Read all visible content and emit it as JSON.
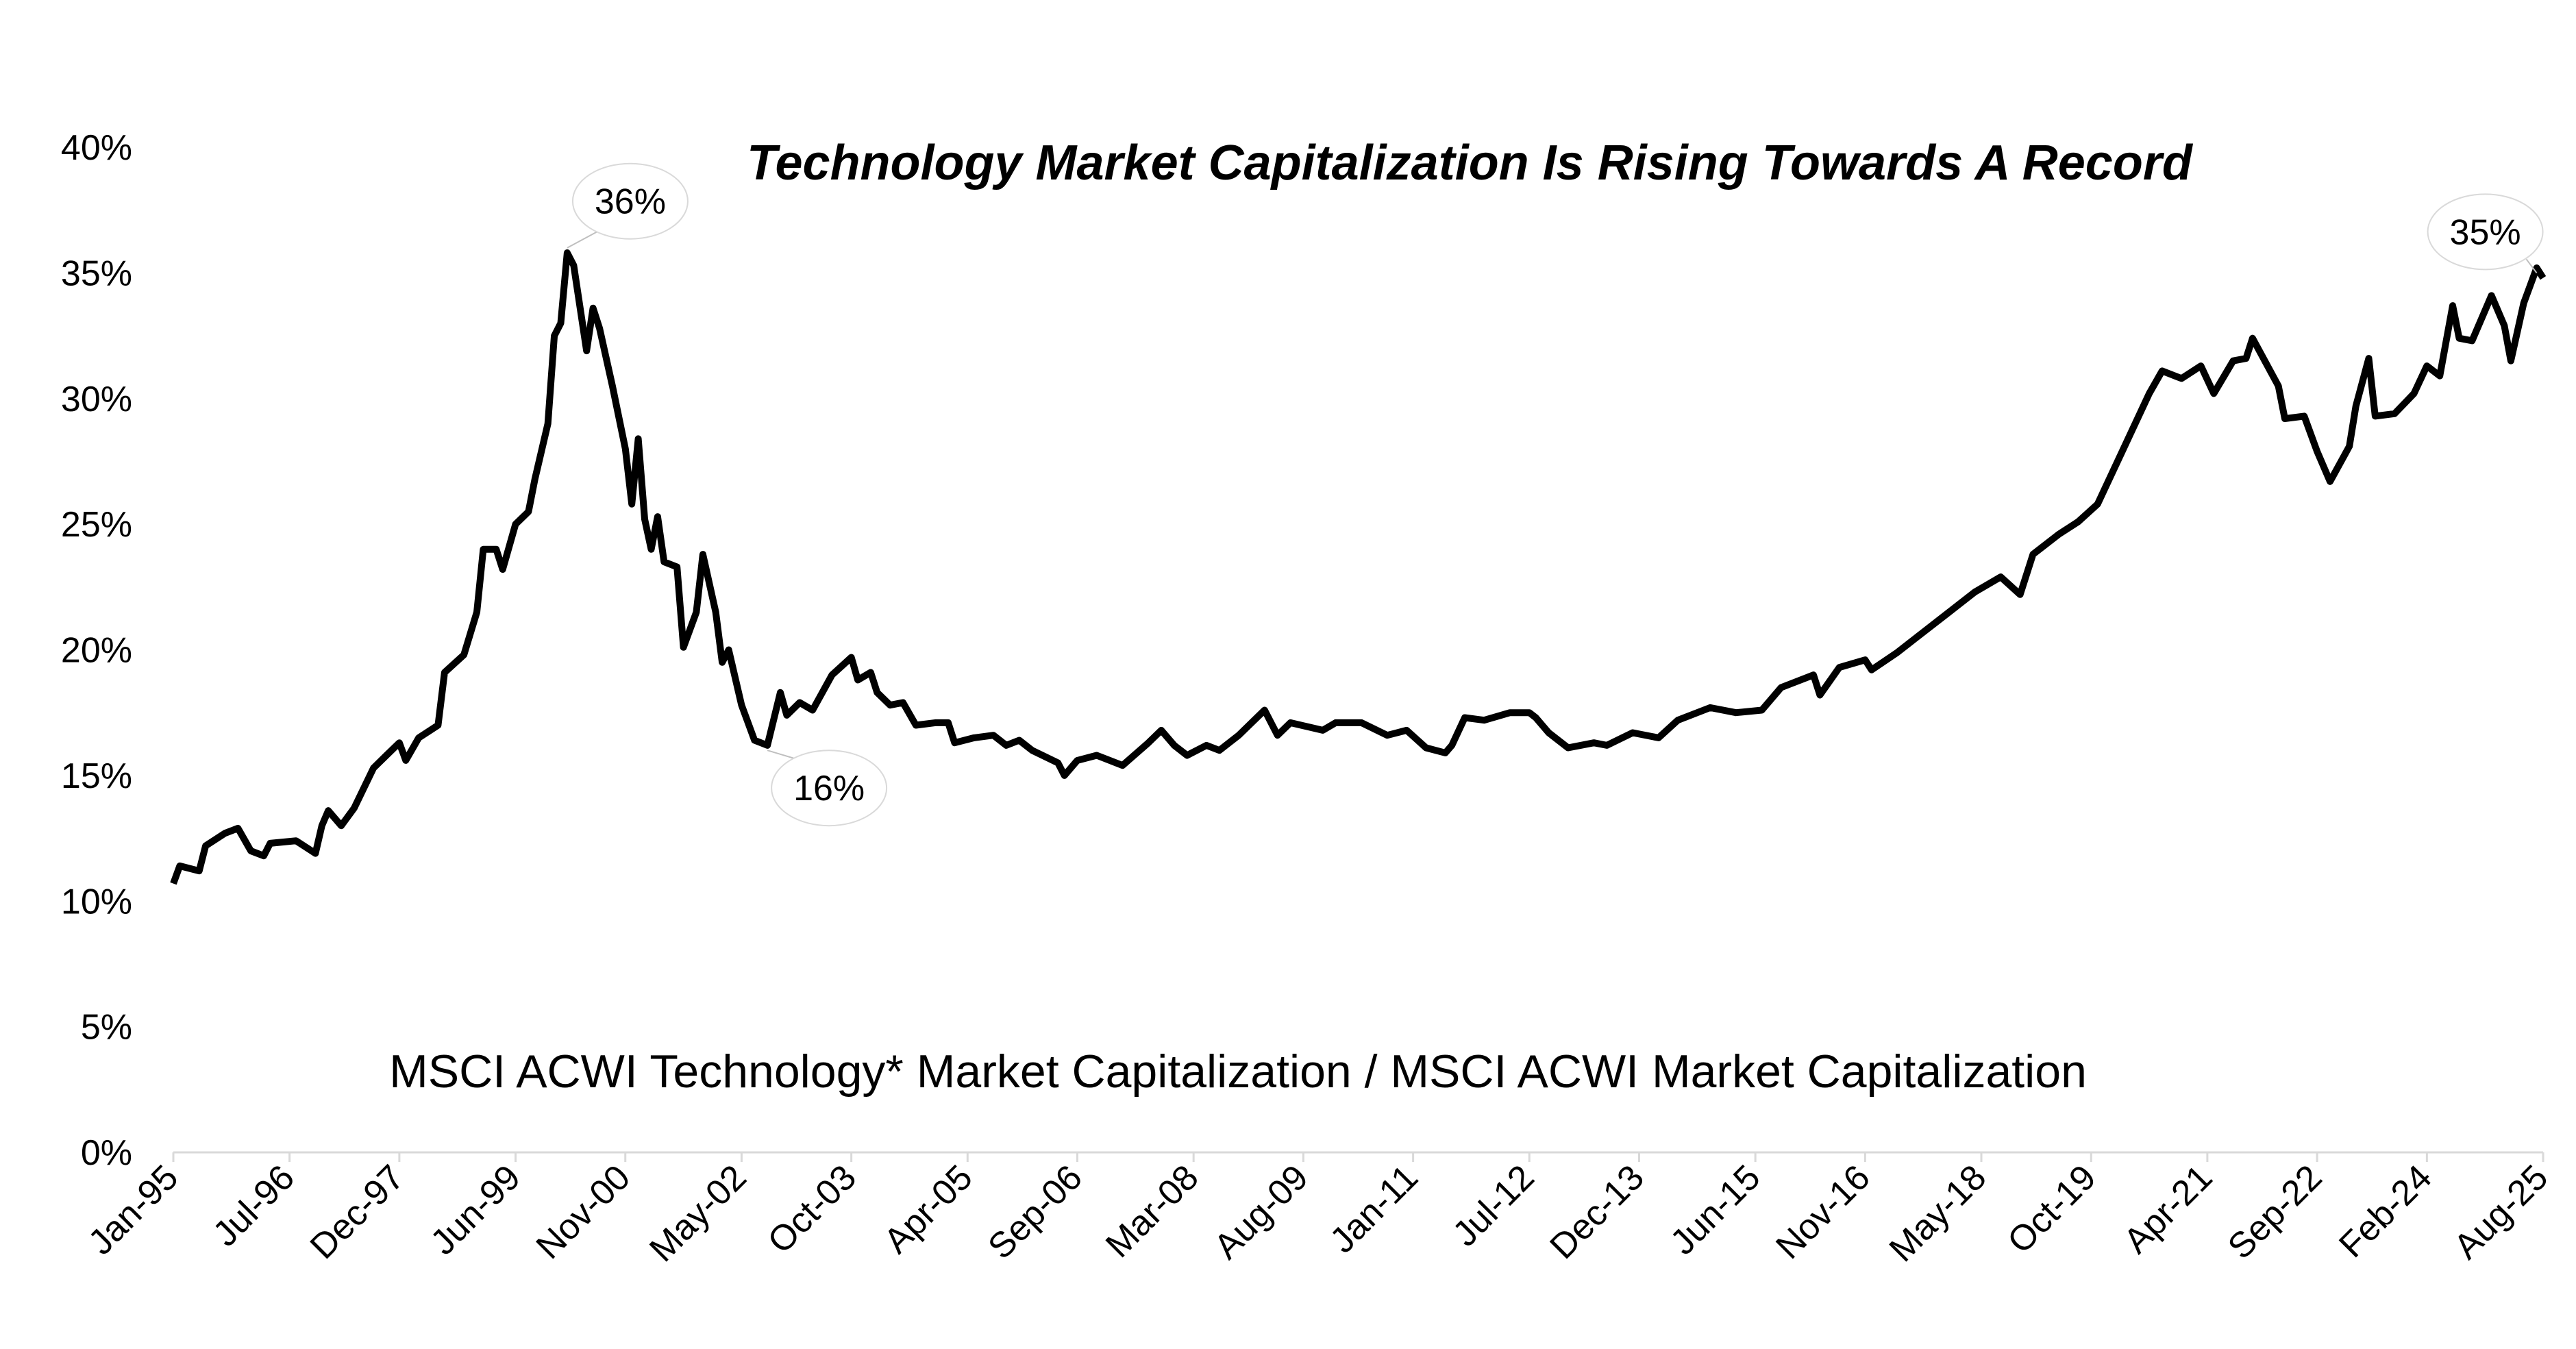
{
  "chart_data": {
    "type": "line",
    "title": "Technology Market Capitalization Is Rising Towards A Record",
    "subtitle": "MSCI ACWI Technology* Market Capitalization / MSCI ACWI Market Capitalization",
    "x": [
      "1995-01",
      "1995-02",
      "1995-05",
      "1995-06",
      "1995-09",
      "1995-11",
      "1996-01",
      "1996-03",
      "1996-04",
      "1996-08",
      "1996-11",
      "1996-12",
      "1997-01",
      "1997-03",
      "1997-05",
      "1997-08",
      "1997-10",
      "1997-12",
      "1998-01",
      "1998-03",
      "1998-06",
      "1998-07",
      "1998-10",
      "1998-12",
      "1999-01",
      "1999-03",
      "1999-04",
      "1999-06",
      "1999-08",
      "1999-09",
      "1999-11",
      "1999-12",
      "2000-01",
      "2000-02",
      "2000-03",
      "2000-05",
      "2000-06",
      "2000-07",
      "2000-09",
      "2000-11",
      "2000-12",
      "2001-01",
      "2001-02",
      "2001-03",
      "2001-04",
      "2001-05",
      "2001-07",
      "2001-08",
      "2001-10",
      "2001-11",
      "2002-01",
      "2002-02",
      "2002-03",
      "2002-05",
      "2002-07",
      "2002-09",
      "2002-11",
      "2002-12",
      "2003-02",
      "2003-04",
      "2003-07",
      "2003-10",
      "2003-11",
      "2004-01",
      "2004-02",
      "2004-04",
      "2004-06",
      "2004-08",
      "2004-11",
      "2005-01",
      "2005-02",
      "2005-05",
      "2005-08",
      "2005-10",
      "2005-12",
      "2006-02",
      "2006-06",
      "2006-07",
      "2006-09",
      "2006-12",
      "2007-04",
      "2007-08",
      "2007-10",
      "2007-12",
      "2008-02",
      "2008-05",
      "2008-07",
      "2008-10",
      "2009-02",
      "2009-04",
      "2009-06",
      "2009-11",
      "2010-01",
      "2010-05",
      "2010-09",
      "2010-12",
      "2011-03",
      "2011-06",
      "2011-07",
      "2011-09",
      "2011-12",
      "2012-04",
      "2012-07",
      "2012-08",
      "2012-10",
      "2013-01",
      "2013-05",
      "2013-07",
      "2013-11",
      "2014-03",
      "2014-06",
      "2014-11",
      "2015-03",
      "2015-07",
      "2015-10",
      "2016-03",
      "2016-04",
      "2016-07",
      "2016-11",
      "2016-12",
      "2017-04",
      "2017-08",
      "2017-12",
      "2018-04",
      "2018-08",
      "2018-11",
      "2019-01",
      "2019-05",
      "2019-08",
      "2019-11",
      "2020-03",
      "2020-07",
      "2020-09",
      "2020-12",
      "2021-03",
      "2021-05",
      "2021-08",
      "2021-10",
      "2021-11",
      "2022-03",
      "2022-04",
      "2022-07",
      "2022-09",
      "2022-11",
      "2023-02",
      "2023-03",
      "2023-05",
      "2023-06",
      "2023-09",
      "2023-12",
      "2024-02",
      "2024-04",
      "2024-06",
      "2024-07",
      "2024-09",
      "2024-12",
      "2025-02",
      "2025-03",
      "2025-05",
      "2025-07",
      "2025-08"
    ],
    "series": [
      {
        "color": "#000000",
        "values": [
          10.7,
          11.4,
          11.2,
          12.2,
          12.7,
          12.9,
          12.0,
          11.8,
          12.3,
          12.4,
          11.9,
          13.0,
          13.6,
          13.0,
          13.7,
          15.3,
          15.8,
          16.3,
          15.6,
          16.5,
          17.0,
          19.1,
          19.8,
          21.5,
          24.0,
          24.0,
          23.2,
          25.0,
          25.5,
          26.8,
          29.0,
          32.5,
          33.0,
          35.8,
          35.3,
          31.9,
          33.6,
          32.8,
          30.5,
          28.0,
          25.8,
          28.4,
          25.2,
          24.0,
          25.3,
          23.5,
          23.3,
          20.1,
          21.5,
          23.8,
          21.5,
          19.5,
          20.0,
          17.8,
          16.4,
          16.2,
          18.3,
          17.4,
          17.9,
          17.6,
          19.0,
          19.7,
          18.8,
          19.1,
          18.3,
          17.8,
          17.9,
          17.0,
          17.1,
          17.1,
          16.3,
          16.5,
          16.6,
          16.2,
          16.4,
          16.0,
          15.5,
          15.0,
          15.6,
          15.8,
          15.4,
          16.3,
          16.8,
          16.2,
          15.8,
          16.2,
          16.0,
          16.6,
          17.6,
          16.6,
          17.1,
          16.8,
          17.1,
          17.1,
          16.6,
          16.8,
          16.1,
          15.9,
          16.2,
          17.3,
          17.2,
          17.5,
          17.5,
          17.3,
          16.7,
          16.1,
          16.3,
          16.2,
          16.7,
          16.5,
          17.2,
          17.7,
          17.5,
          17.6,
          18.5,
          19.0,
          18.2,
          19.3,
          19.6,
          19.2,
          19.9,
          20.7,
          21.5,
          22.3,
          22.9,
          22.2,
          23.8,
          24.6,
          25.1,
          25.8,
          28.0,
          30.2,
          31.1,
          30.8,
          31.3,
          30.2,
          31.5,
          31.6,
          32.4,
          30.5,
          29.2,
          29.3,
          27.9,
          26.7,
          28.1,
          29.7,
          31.6,
          29.3,
          29.4,
          30.2,
          31.3,
          30.9,
          33.7,
          32.4,
          32.3,
          34.1,
          32.9,
          31.5,
          33.8,
          35.2,
          34.8
        ]
      }
    ],
    "xlim": [
      "1995-01",
      "2025-08"
    ],
    "xticks": [
      {
        "value": "1995-01",
        "label": "Jan-95"
      },
      {
        "value": "1996-07",
        "label": "Jul-96"
      },
      {
        "value": "1997-12",
        "label": "Dec-97"
      },
      {
        "value": "1999-06",
        "label": "Jun-99"
      },
      {
        "value": "2000-11",
        "label": "Nov-00"
      },
      {
        "value": "2002-05",
        "label": "May-02"
      },
      {
        "value": "2003-10",
        "label": "Oct-03"
      },
      {
        "value": "2005-04",
        "label": "Apr-05"
      },
      {
        "value": "2006-09",
        "label": "Sep-06"
      },
      {
        "value": "2008-03",
        "label": "Mar-08"
      },
      {
        "value": "2009-08",
        "label": "Aug-09"
      },
      {
        "value": "2011-01",
        "label": "Jan-11"
      },
      {
        "value": "2012-07",
        "label": "Jul-12"
      },
      {
        "value": "2013-12",
        "label": "Dec-13"
      },
      {
        "value": "2015-06",
        "label": "Jun-15"
      },
      {
        "value": "2016-11",
        "label": "Nov-16"
      },
      {
        "value": "2018-05",
        "label": "May-18"
      },
      {
        "value": "2019-10",
        "label": "Oct-19"
      },
      {
        "value": "2021-04",
        "label": "Apr-21"
      },
      {
        "value": "2022-09",
        "label": "Sep-22"
      },
      {
        "value": "2024-02",
        "label": "Feb-24"
      },
      {
        "value": "2025-08",
        "label": "Aug-25"
      }
    ],
    "ylim": [
      0,
      40
    ],
    "yticks": [
      {
        "value": 0,
        "label": "0%"
      },
      {
        "value": 5,
        "label": "5%"
      },
      {
        "value": 10,
        "label": "10%"
      },
      {
        "value": 15,
        "label": "15%"
      },
      {
        "value": 20,
        "label": "20%"
      },
      {
        "value": 25,
        "label": "25%"
      },
      {
        "value": 30,
        "label": "30%"
      },
      {
        "value": 35,
        "label": "35%"
      },
      {
        "value": 40,
        "label": "40%"
      }
    ],
    "annotations": [
      {
        "label": "36%",
        "x": "2000-02",
        "y": 36
      },
      {
        "label": "16%",
        "x": "2002-09",
        "y": 16
      },
      {
        "label": "35%",
        "x": "2025-07",
        "y": 35
      }
    ],
    "grid": false
  }
}
